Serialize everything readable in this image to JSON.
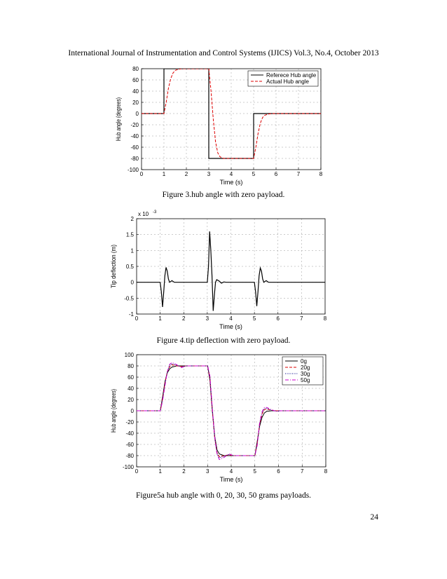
{
  "header": {
    "running_title": "International Journal of Instrumentation and Control Systems (IJICS) Vol.3, No.4, October 2013"
  },
  "page_number": "24",
  "chart_data": [
    {
      "type": "line",
      "caption": "Figure 3.hub angle with zero payload.",
      "xlabel": "Time (s)",
      "ylabel": "Hub angle (degrees)",
      "xlim": [
        0,
        8
      ],
      "ylim": [
        -100,
        80
      ],
      "xticks": [
        0,
        1,
        2,
        3,
        4,
        5,
        6,
        7,
        8
      ],
      "yticks": [
        -100,
        -80,
        -60,
        -40,
        -20,
        0,
        20,
        40,
        60,
        80
      ],
      "grid": true,
      "legend_position": "top-right",
      "series": [
        {
          "name": "Referece Hub angle",
          "color": "#000000",
          "style": "solid",
          "x": [
            0,
            1,
            1,
            3,
            3,
            5,
            5,
            8
          ],
          "y": [
            0,
            0,
            80,
            80,
            -80,
            -80,
            0,
            0
          ]
        },
        {
          "name": "Actual Hub angle",
          "color": "#dd0000",
          "style": "dashed",
          "x": [
            0,
            1.0,
            1.1,
            1.2,
            1.3,
            1.4,
            1.5,
            1.65,
            1.8,
            2.0,
            3.0,
            3.1,
            3.2,
            3.3,
            3.4,
            3.5,
            3.65,
            3.8,
            4.0,
            5.0,
            5.1,
            5.2,
            5.3,
            5.4,
            5.5,
            5.65,
            5.8,
            6.0,
            8.0
          ],
          "y": [
            0,
            0,
            20,
            45,
            62,
            72,
            77,
            79,
            80,
            80,
            80,
            40,
            -10,
            -50,
            -70,
            -77,
            -80,
            -80,
            -80,
            -80,
            -60,
            -35,
            -17,
            -7,
            -3,
            -1,
            0,
            0,
            0
          ]
        }
      ]
    },
    {
      "type": "line",
      "caption": "Figure 4.tip deflection with zero payload.",
      "xlabel": "Time (s)",
      "ylabel": "Tip deflection (m)",
      "y_multiplier": "x 10",
      "y_exponent": "-3",
      "xlim": [
        0,
        8
      ],
      "ylim": [
        -1,
        2
      ],
      "xticks": [
        0,
        1,
        2,
        3,
        4,
        5,
        6,
        7,
        8
      ],
      "yticks": [
        -1,
        -0.5,
        0,
        0.5,
        1,
        1.5,
        2
      ],
      "grid": true,
      "series": [
        {
          "color": "#000000",
          "style": "solid",
          "x": [
            0,
            1.0,
            1.05,
            1.1,
            1.15,
            1.2,
            1.25,
            1.3,
            1.35,
            1.4,
            1.5,
            1.6,
            2.0,
            3.0,
            3.05,
            3.1,
            3.15,
            3.2,
            3.25,
            3.3,
            3.35,
            3.4,
            3.5,
            3.6,
            3.7,
            3.8,
            4.0,
            5.0,
            5.05,
            5.1,
            5.15,
            5.2,
            5.25,
            5.3,
            5.35,
            5.4,
            5.5,
            5.6,
            6.0,
            8.0
          ],
          "y": [
            0,
            0,
            -0.3,
            -0.78,
            -0.3,
            0.2,
            0.47,
            0.35,
            0.1,
            0.0,
            0.05,
            0.0,
            0.0,
            0.0,
            0.5,
            1.6,
            1.0,
            0.2,
            -0.9,
            -0.4,
            0.0,
            0.08,
            0.04,
            -0.03,
            0.01,
            0.0,
            0.0,
            0.0,
            -0.3,
            -0.75,
            -0.3,
            0.2,
            0.45,
            0.35,
            0.1,
            0.0,
            0.05,
            0.0,
            0.0,
            0.0
          ]
        }
      ]
    },
    {
      "type": "line",
      "caption": "Figure5a hub angle with 0, 20, 30, 50 grams payloads.",
      "xlabel": "Time (s)",
      "ylabel": "Hub angle (degrees)",
      "xlim": [
        0,
        8
      ],
      "ylim": [
        -100,
        100
      ],
      "xticks": [
        0,
        1,
        2,
        3,
        4,
        5,
        6,
        7,
        8
      ],
      "yticks": [
        -100,
        -80,
        -60,
        -40,
        -20,
        0,
        20,
        40,
        60,
        80,
        100
      ],
      "grid": true,
      "legend_position": "top-right",
      "series": [
        {
          "name": "0g",
          "color": "#000000",
          "style": "solid",
          "x": [
            0,
            1.0,
            1.1,
            1.2,
            1.3,
            1.4,
            1.5,
            1.7,
            1.9,
            2.1,
            3.0,
            3.1,
            3.2,
            3.3,
            3.4,
            3.5,
            3.7,
            3.9,
            4.1,
            5.0,
            5.1,
            5.2,
            5.3,
            5.4,
            5.5,
            5.7,
            5.9,
            6.1,
            8.0
          ],
          "y": [
            0,
            0,
            25,
            52,
            68,
            75,
            78,
            80,
            80,
            80,
            80,
            55,
            0,
            -45,
            -70,
            -77,
            -80,
            -80,
            -80,
            -80,
            -55,
            -28,
            -12,
            -4,
            -1,
            0,
            0,
            0,
            0
          ]
        },
        {
          "name": "20g",
          "color": "#dd0000",
          "style": "dashed",
          "x": [
            0,
            1.0,
            1.1,
            1.2,
            1.3,
            1.4,
            1.5,
            1.7,
            1.9,
            2.1,
            3.0,
            3.1,
            3.2,
            3.3,
            3.4,
            3.5,
            3.7,
            3.9,
            4.1,
            5.0,
            5.1,
            5.2,
            5.3,
            5.4,
            5.5,
            5.7,
            5.9,
            6.1,
            8.0
          ],
          "y": [
            0,
            0,
            22,
            50,
            70,
            79,
            82,
            80,
            79,
            80,
            80,
            58,
            2,
            -48,
            -75,
            -82,
            -80,
            -79,
            -80,
            -80,
            -58,
            -25,
            -6,
            2,
            3,
            1,
            0,
            0,
            0
          ]
        },
        {
          "name": "30g",
          "color": "#000088",
          "style": "dotted",
          "x": [
            0,
            1.0,
            1.1,
            1.2,
            1.3,
            1.4,
            1.5,
            1.7,
            1.9,
            2.1,
            3.0,
            3.1,
            3.2,
            3.3,
            3.4,
            3.5,
            3.7,
            3.9,
            4.1,
            5.0,
            5.1,
            5.2,
            5.3,
            5.4,
            5.5,
            5.7,
            5.9,
            6.1,
            8.0
          ],
          "y": [
            0,
            0,
            20,
            48,
            70,
            81,
            84,
            81,
            78,
            80,
            80,
            60,
            4,
            -48,
            -77,
            -84,
            -81,
            -78,
            -80,
            -80,
            -60,
            -24,
            -4,
            4,
            4,
            1,
            -1,
            0,
            0
          ]
        },
        {
          "name": "50g",
          "color": "#cc00cc",
          "style": "dashdot",
          "x": [
            0,
            1.0,
            1.1,
            1.2,
            1.3,
            1.4,
            1.5,
            1.7,
            1.9,
            2.1,
            3.0,
            3.1,
            3.2,
            3.3,
            3.4,
            3.5,
            3.7,
            3.9,
            4.1,
            5.0,
            5.1,
            5.2,
            5.3,
            5.4,
            5.5,
            5.7,
            5.9,
            6.1,
            8.0
          ],
          "y": [
            0,
            0,
            18,
            45,
            70,
            83,
            86,
            82,
            77,
            80,
            80,
            62,
            6,
            -46,
            -78,
            -87,
            -83,
            -77,
            -80,
            -80,
            -62,
            -22,
            -2,
            6,
            6,
            2,
            -1,
            0,
            0
          ]
        }
      ]
    }
  ]
}
